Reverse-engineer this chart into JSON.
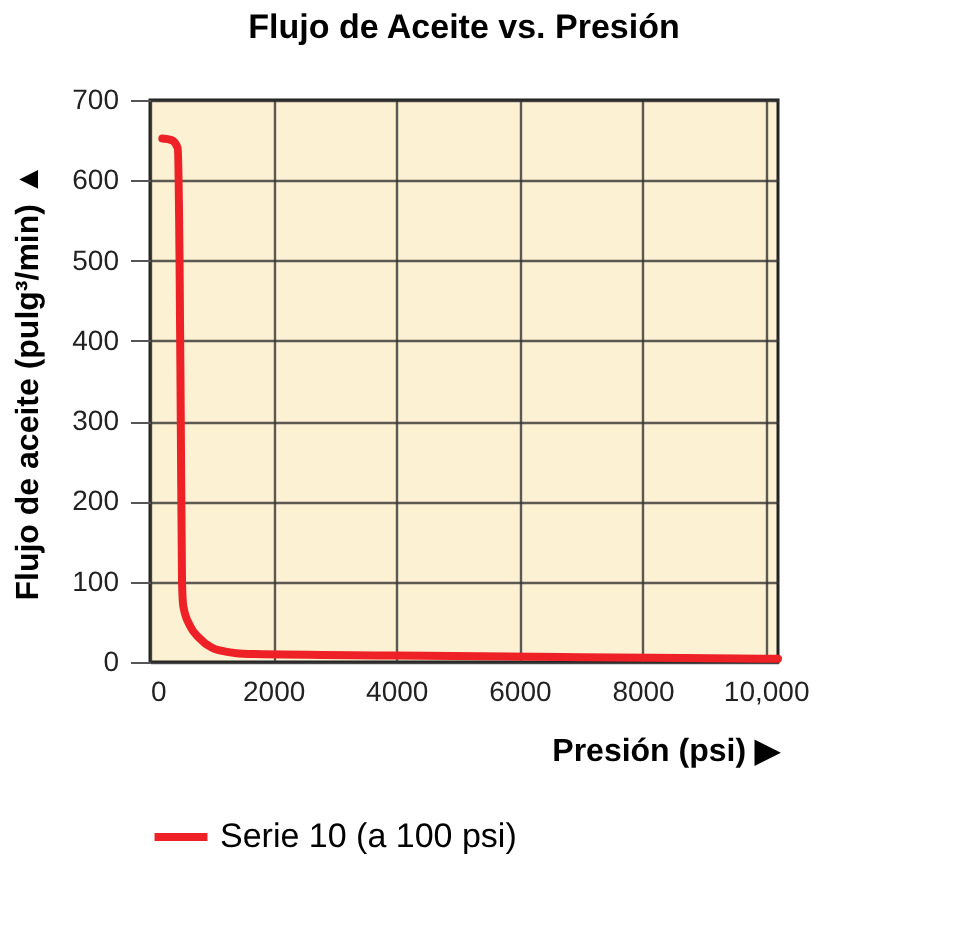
{
  "chart_data": {
    "type": "line",
    "title": "Flujo de Aceite vs. Presión",
    "xlabel": "Presión (psi) ▶",
    "ylabel": "Flujo de aceite (pulg³/min) ▲",
    "series": [
      {
        "name": "Serie 10 (a 100 psi)",
        "color": "#ee2127",
        "x": [
          200,
          350,
          450,
          480,
          500,
          520,
          540,
          650,
          800,
          1000,
          1300,
          1600,
          4000,
          7000,
          10200
        ],
        "values": [
          652,
          650,
          640,
          500,
          300,
          100,
          70,
          45,
          30,
          18,
          12,
          10,
          8,
          6,
          4
        ]
      }
    ],
    "xlim": [
      0,
      10200
    ],
    "xticks": [
      0,
      2000,
      4000,
      6000,
      8000,
      {
        "value": 10000,
        "label": "10,000"
      }
    ],
    "ylim": [
      0,
      700
    ],
    "yticks": [
      0,
      100,
      200,
      300,
      400,
      500,
      600,
      700
    ],
    "grid": true,
    "legend": "bottom",
    "line_style": "solid",
    "marker": "none"
  }
}
